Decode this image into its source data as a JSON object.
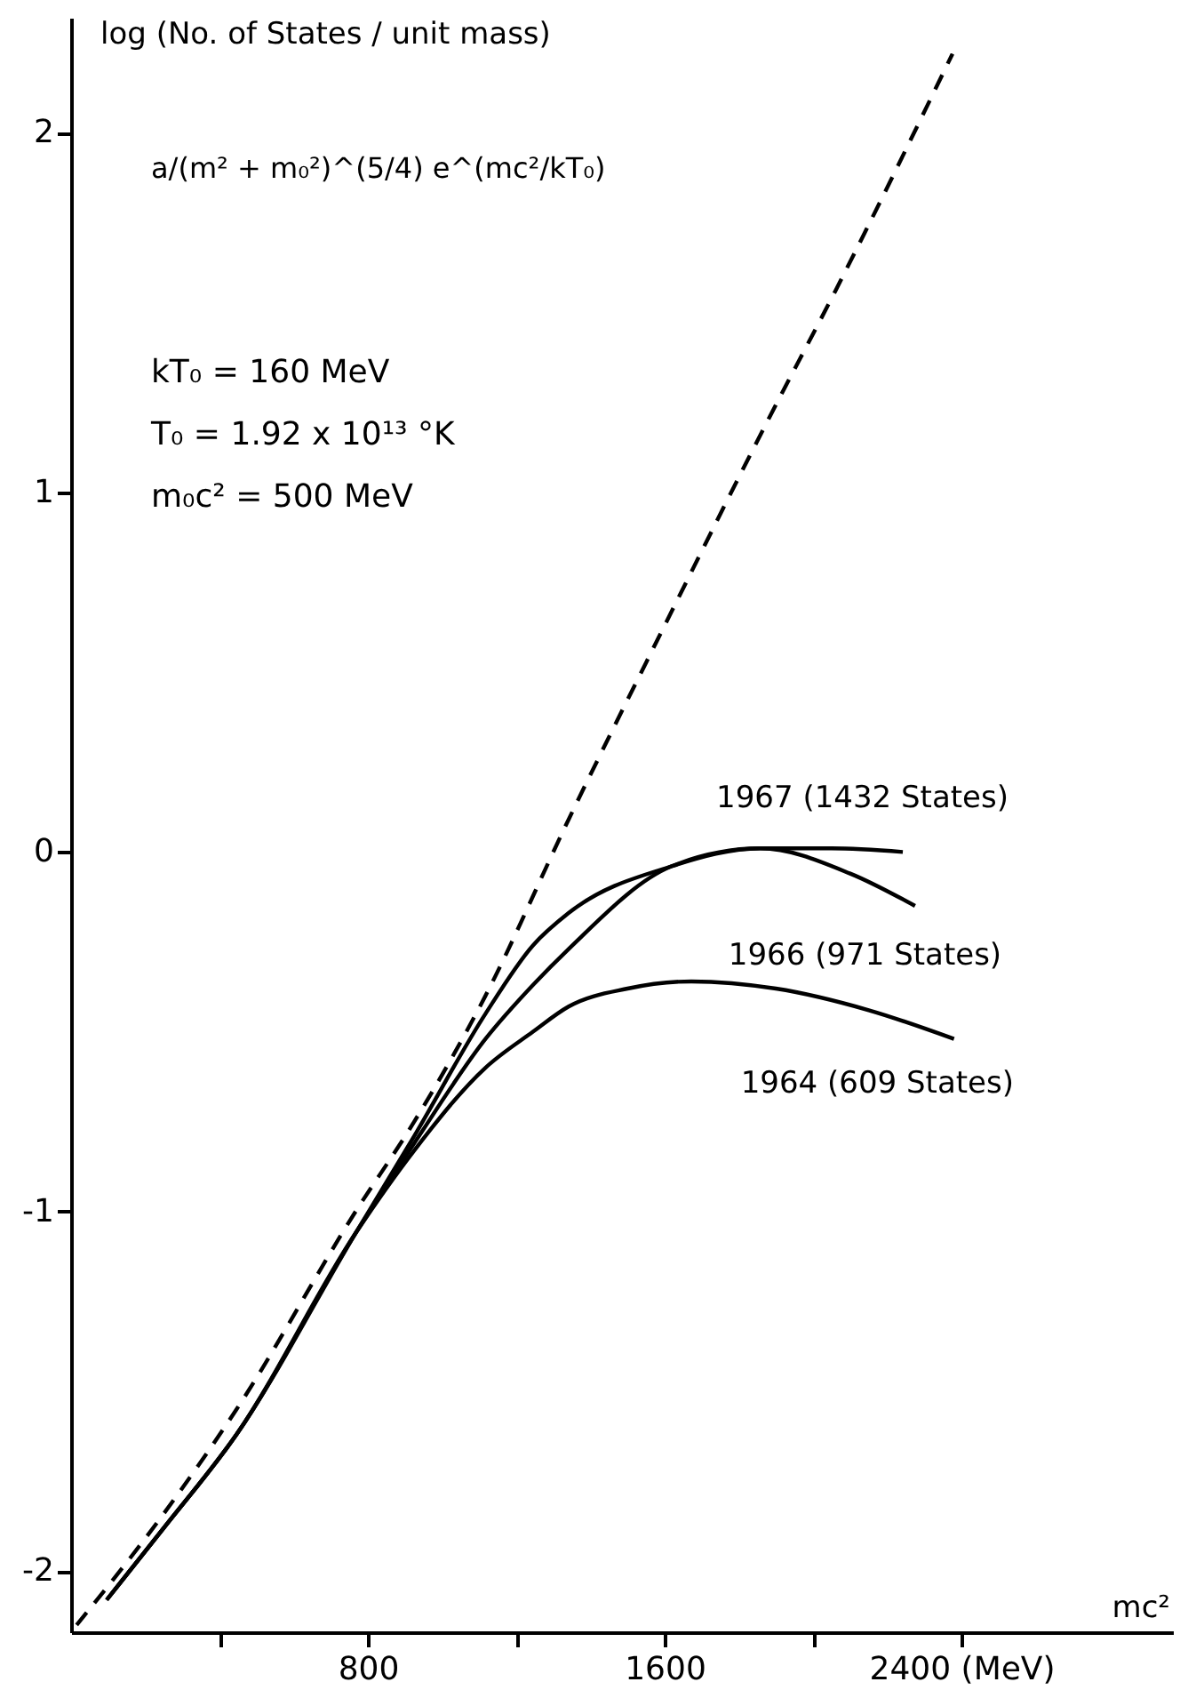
{
  "chart_data": {
    "type": "line",
    "ylabel": "log (No. of States / unit mass)",
    "xlabel": "mc²",
    "annotations": [
      "a/(m² + m₀²)^(5/4) e^(mc²/kT₀)",
      "kT₀ = 160 MeV",
      "T₀ = 1.92 x 10¹³ °K",
      "m₀c² = 500 MeV"
    ],
    "series": [
      {
        "color": "#000000",
        "line_style": "dashed",
        "x": [
          15,
          250,
          446,
          767,
          925,
          1117,
          1341,
          1600,
          1883,
          2060,
          2376
        ],
        "values": [
          -2.15,
          -1.84,
          -1.55,
          -1.0,
          -0.75,
          -0.4,
          0.09,
          0.63,
          1.21,
          1.56,
          2.22
        ]
      },
      {
        "name": "1967 (1432 States)",
        "color": "#000000",
        "line_style": "solid",
        "x": [
          96,
          250,
          446,
          767,
          925,
          1117,
          1245,
          1341,
          1618,
          1858,
          2050,
          2242
        ],
        "values": [
          -2.08,
          -1.88,
          -1.62,
          -1.06,
          -0.79,
          -0.45,
          -0.26,
          -0.17,
          -0.04,
          0.01,
          0.01,
          0.0
        ]
      },
      {
        "name": "1966 (971 States)",
        "color": "#000000",
        "line_style": "solid",
        "x": [
          96,
          250,
          446,
          767,
          925,
          1117,
          1245,
          1341,
          1618,
          1858,
          2100,
          2275
        ],
        "values": [
          -2.08,
          -1.88,
          -1.62,
          -1.06,
          -0.81,
          -0.52,
          -0.37,
          -0.27,
          -0.04,
          0.01,
          -0.06,
          -0.15
        ]
      },
      {
        "name": "1964 (609 States)",
        "color": "#000000",
        "line_style": "solid",
        "x": [
          96,
          250,
          446,
          767,
          925,
          1117,
          1245,
          1341,
          1500,
          1672,
          1900,
          2150,
          2380
        ],
        "values": [
          -2.08,
          -1.88,
          -1.62,
          -1.06,
          -0.83,
          -0.6,
          -0.5,
          -0.43,
          -0.38,
          -0.36,
          -0.38,
          -0.44,
          -0.52
        ]
      }
    ],
    "xlim": [
      0,
      2970
    ],
    "ylim": [
      -2.17,
      2.32
    ],
    "xticks": [
      {
        "value": 400,
        "label": null
      },
      800,
      {
        "value": 1200,
        "label": null
      },
      1600,
      {
        "value": 2000,
        "label": null
      },
      {
        "value": 2400,
        "label": "2400 (MeV)"
      }
    ],
    "yticks": [
      -2,
      -1,
      0,
      1,
      2
    ]
  }
}
